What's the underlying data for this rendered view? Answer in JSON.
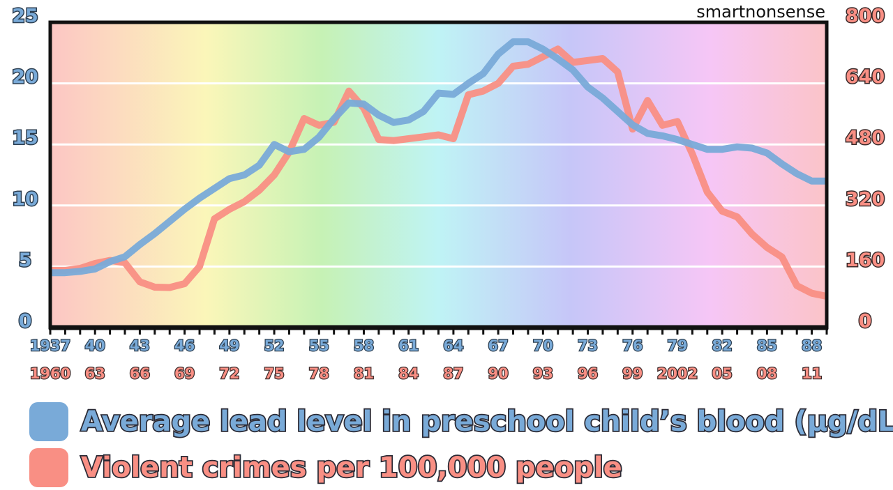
{
  "chart_data": {
    "type": "line",
    "watermark": "smartnonsense",
    "x": [
      1937,
      1938,
      1939,
      1940,
      1941,
      1942,
      1943,
      1944,
      1945,
      1946,
      1947,
      1948,
      1949,
      1950,
      1951,
      1952,
      1953,
      1954,
      1955,
      1956,
      1957,
      1958,
      1959,
      1960,
      1961,
      1962,
      1963,
      1964,
      1965,
      1966,
      1967,
      1968,
      1969,
      1970,
      1971,
      1972,
      1973,
      1974,
      1975,
      1976,
      1977,
      1978,
      1979,
      1980,
      1981,
      1982,
      1983,
      1984,
      1985,
      1986,
      1987,
      1988,
      1989
    ],
    "xlim": [
      1937,
      1989
    ],
    "xticks": [
      {
        "value": 1937,
        "label": "1937"
      },
      {
        "value": 1940,
        "label": "40"
      },
      {
        "value": 1943,
        "label": "43"
      },
      {
        "value": 1946,
        "label": "46"
      },
      {
        "value": 1949,
        "label": "49"
      },
      {
        "value": 1952,
        "label": "52"
      },
      {
        "value": 1955,
        "label": "55"
      },
      {
        "value": 1958,
        "label": "58"
      },
      {
        "value": 1961,
        "label": "61"
      },
      {
        "value": 1964,
        "label": "64"
      },
      {
        "value": 1967,
        "label": "67"
      },
      {
        "value": 1970,
        "label": "70"
      },
      {
        "value": 1973,
        "label": "73"
      },
      {
        "value": 1976,
        "label": "76"
      },
      {
        "value": 1979,
        "label": "79"
      },
      {
        "value": 1982,
        "label": "82"
      },
      {
        "value": 1985,
        "label": "85"
      },
      {
        "value": 1988,
        "label": "88"
      }
    ],
    "x2lim": [
      1960,
      2012
    ],
    "x2ticks": [
      1960,
      {
        "value": 1963,
        "label": "63"
      },
      {
        "value": 1966,
        "label": "66"
      },
      {
        "value": 1969,
        "label": "69"
      },
      {
        "value": 1972,
        "label": "72"
      },
      {
        "value": 1975,
        "label": "75"
      },
      {
        "value": 1978,
        "label": "78"
      },
      {
        "value": 1981,
        "label": "81"
      },
      {
        "value": 1984,
        "label": "84"
      },
      {
        "value": 1987,
        "label": "87"
      },
      {
        "value": 1990,
        "label": "90"
      },
      {
        "value": 1993,
        "label": "93"
      },
      {
        "value": 1996,
        "label": "96"
      },
      {
        "value": 1999,
        "label": "99"
      },
      2002,
      {
        "value": 2005,
        "label": "05"
      },
      {
        "value": 2008,
        "label": "08"
      },
      {
        "value": 2011,
        "label": "11"
      }
    ],
    "ylim": [
      0,
      25
    ],
    "yticks": [
      0,
      5,
      10,
      15,
      20,
      25
    ],
    "y2lim": [
      0,
      800
    ],
    "y2ticks": [
      0,
      160,
      320,
      480,
      640,
      800
    ],
    "grid": true,
    "series": [
      {
        "name": "Violent crimes per 100,000 people",
        "color": "#f98f84",
        "axis": "y2",
        "values": [
          150,
          150,
          155,
          168,
          176,
          170,
          120,
          106,
          105,
          115,
          160,
          285,
          310,
          330,
          360,
          400,
          460,
          548,
          530,
          538,
          620,
          575,
          493,
          490,
          495,
          500,
          505,
          495,
          610,
          620,
          640,
          685,
          690,
          710,
          730,
          695,
          700,
          705,
          670,
          520,
          595,
          530,
          540,
          455,
          355,
          305,
          290,
          245,
          210,
          185,
          110,
          90,
          82
        ]
      },
      {
        "name": "Average lead level in preschool child’s blood (µg/dL)",
        "color": "#79aad8",
        "axis": "y",
        "values": [
          4.5,
          4.5,
          4.6,
          4.8,
          5.4,
          5.8,
          6.8,
          7.7,
          8.7,
          9.7,
          10.6,
          11.4,
          12.2,
          12.5,
          13.3,
          15.0,
          14.4,
          14.6,
          15.6,
          17.1,
          18.4,
          18.3,
          17.4,
          16.8,
          17.0,
          17.7,
          19.2,
          19.1,
          20.0,
          20.8,
          22.4,
          23.4,
          23.4,
          22.8,
          22.0,
          21.1,
          19.7,
          18.8,
          17.7,
          16.6,
          15.9,
          15.7,
          15.4,
          15.0,
          14.6,
          14.6,
          14.8,
          14.7,
          14.3,
          13.4,
          12.6,
          12.0,
          12.0
        ]
      }
    ]
  }
}
